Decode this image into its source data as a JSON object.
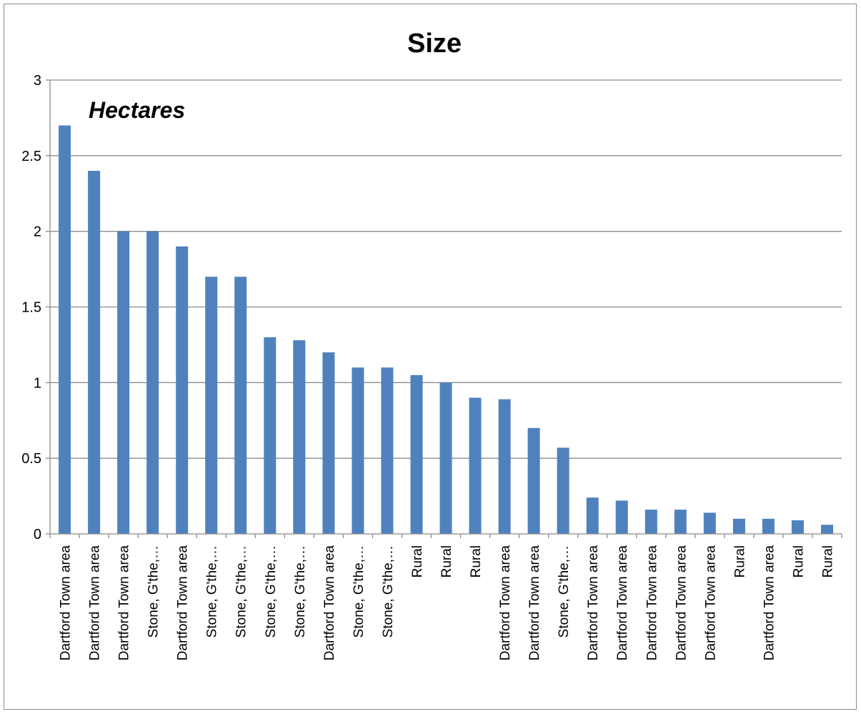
{
  "chart_data": {
    "type": "bar",
    "title": "Size",
    "annotation": "Hectares",
    "categories": [
      "Dartford Town area",
      "Dartford Town area",
      "Dartford Town area",
      "Stone, G'the,…",
      "Dartford Town area",
      "Stone, G'the,…",
      "Stone, G'the,…",
      "Stone, G'the,…",
      "Stone, G'the,…",
      "Dartford Town area",
      "Stone, G'the,…",
      "Stone, G'the,…",
      "Rural",
      "Rural",
      "Rural",
      "Dartford Town area",
      "Dartford Town area",
      "Stone, G'the,…",
      "Dartford Town area",
      "Dartford Town area",
      "Dartford Town area",
      "Dartford Town area",
      "Dartford Town area",
      "Rural",
      "Dartford Town area",
      "Rural",
      "Rural"
    ],
    "values": [
      2.7,
      2.4,
      2.0,
      2.0,
      1.9,
      1.7,
      1.7,
      1.3,
      1.28,
      1.2,
      1.1,
      1.1,
      1.05,
      1.0,
      0.9,
      0.89,
      0.7,
      0.57,
      0.24,
      0.22,
      0.16,
      0.16,
      0.14,
      0.1,
      0.1,
      0.09,
      0.06
    ],
    "ylim": [
      0,
      3
    ],
    "yticks": [
      "0",
      "0.5",
      "1",
      "1.5",
      "2",
      "2.5",
      "3"
    ],
    "grid": true,
    "bar_color": "#4f81bd",
    "xlabel": "",
    "ylabel": ""
  }
}
